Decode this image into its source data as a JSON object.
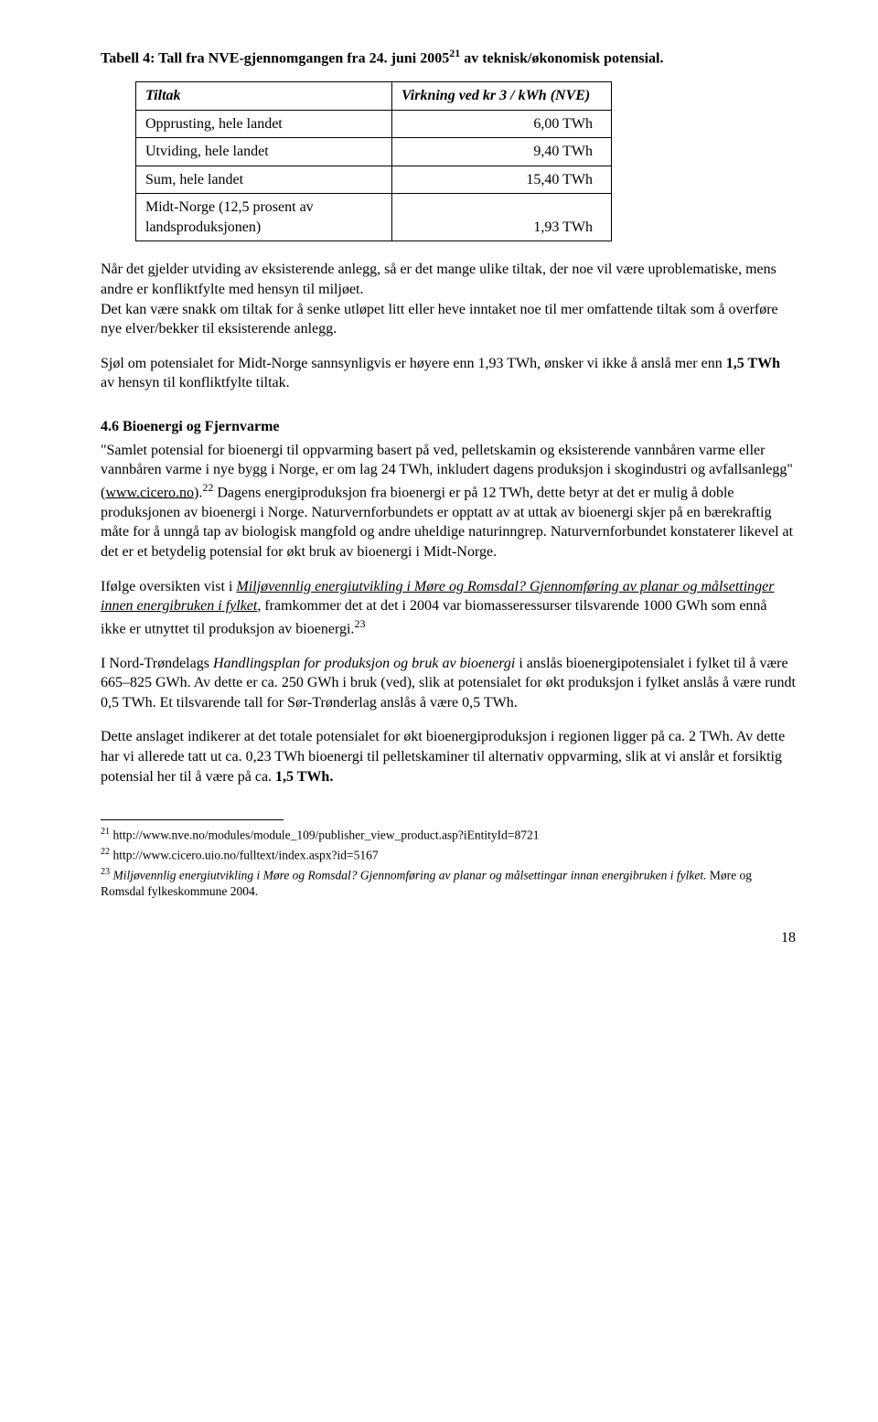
{
  "caption": {
    "prefix": "Tabell 4: Tall fra NVE-gjennomgangen fra 24. juni 2005",
    "supref": "21",
    "suffix": " av teknisk/økonomisk potensial."
  },
  "table": {
    "header": {
      "c1": "Tiltak",
      "c2": "Virkning ved kr 3 / kWh (NVE)"
    },
    "rows": [
      {
        "c1": "Opprusting, hele landet",
        "c2": "6,00 TWh"
      },
      {
        "c1": "Utviding, hele landet",
        "c2": "9,40 TWh"
      },
      {
        "c1": "Sum, hele landet",
        "c2": "15,40 TWh"
      },
      {
        "c1": "Midt-Norge (12,5 prosent av landsproduksjonen)",
        "c2": "1,93 TWh"
      }
    ]
  },
  "p1": "Når det gjelder utviding av eksisterende anlegg, så er det mange ulike tiltak, der noe vil være uproblematiske, mens andre er konfliktfylte med hensyn til miljøet.",
  "p1b": "Det kan være snakk om tiltak for å senke utløpet litt eller heve inntaket noe til mer omfattende tiltak som å overføre nye elver/bekker til eksisterende anlegg.",
  "p2a": "Sjøl om potensialet for Midt-Norge sannsynligvis er høyere enn 1,93 TWh, ønsker vi ikke å anslå mer enn ",
  "p2b": "1,5 TWh",
  "p2c": " av hensyn til konfliktfylte tiltak.",
  "section": "4.6 Bioenergi og Fjernvarme",
  "p3a": "\"Samlet potensial for bioenergi til oppvarming basert på ved, pelletskamin og eksisterende vannbåren varme eller vannbåren varme i nye bygg i Norge, er om lag 24 TWh, inkludert dagens produksjon i skogindustri og avfallsanlegg\"(",
  "p3link": "www.cicero.no",
  "p3b": ").",
  "p3sup": "22",
  "p3c": " Dagens energiproduksjon fra bioenergi er på 12 TWh, dette betyr at det er mulig å doble produksjonen av bioenergi i Norge. Naturvernforbundets er opptatt av at uttak av bioenergi skjer på en bærekraftig måte for å unngå tap av biologisk mangfold og andre uheldige naturinngrep. Naturvernforbundet konstaterer likevel at det er et betydelig potensial for økt bruk av bioenergi i Midt-Norge.",
  "p4a": "Ifølge oversikten vist i ",
  "p4i1": "Miljøvennlig energiutvikling i Møre og Romsdal? Gjennomføring av planar og målsettinger innen energibruken i fylket",
  "p4b": ", framkommer det at det i 2004 var biomasseressurser tilsvarende 1000 GWh som ennå ikke er utnyttet til produksjon av bioenergi.",
  "p4sup": "23",
  "p5a": "I Nord-Trøndelags ",
  "p5i": "Handlingsplan for produksjon og bruk av bioenergi",
  "p5b": " i anslås bioenergipotensialet i fylket til å være 665–825 GWh. Av dette er ca. 250 GWh i bruk (ved), slik at potensialet for økt produksjon i fylket anslås å være rundt 0,5 TWh. Et tilsvarende tall for Sør-Trønderlag anslås å være 0,5 TWh.",
  "p6a": "Dette anslaget indikerer at det totale potensialet for økt bioenergiproduksjon i regionen ligger på ca. 2 TWh. Av dette har vi allerede tatt ut ca. 0,23 TWh bioenergi til pelletskaminer til alternativ oppvarming, slik at vi anslår et forsiktig potensial her til å være på ca. ",
  "p6b": "1,5 TWh.",
  "footnotes": {
    "f21": {
      "n": "21",
      "t": " http://www.nve.no/modules/module_109/publisher_view_product.asp?iEntityId=8721"
    },
    "f22": {
      "n": "22",
      "t": " http://www.cicero.uio.no/fulltext/index.aspx?id=5167"
    },
    "f23": {
      "n": "23",
      "i": " Miljøvennlig energiutvikling i Møre og Romsdal? Gjennomføring av planar og målsettingar  innan energibruken i fylket.",
      "t": " Møre og Romsdal fylkeskommune 2004."
    }
  },
  "pagenum": "18"
}
